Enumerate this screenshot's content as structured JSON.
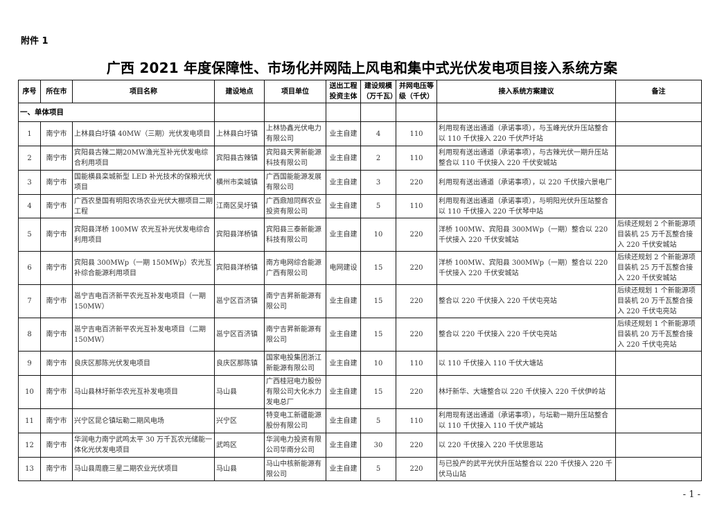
{
  "attachment_label": "附件 1",
  "title": "广西 2021 年度保障性、市场化并网陆上风电和集中式光伏发电项目接入系统方案",
  "table": {
    "headers": [
      "序号",
      "所在市",
      "项目名称",
      "建设地点",
      "项目单位",
      "送出工程投资主体",
      "建设规模（万千瓦）",
      "并网电压等级（千伏）",
      "接入系统方案建议",
      "备注"
    ],
    "section_label": "一、单体项目",
    "rows": [
      {
        "no": "1",
        "city": "南宁市",
        "name": "上林县白圩镇 40MW（三期）光伏发电项目",
        "site": "上林县白圩镇",
        "unit": "上林协鑫光伏电力有限公司",
        "investor": "业主自建",
        "scale": "4",
        "voltage": "110",
        "scheme": "利用现有送出通道（承诺事项），与玉峰光伏升压站整合以 110 千伏接入 220 千伏芦圩站",
        "note": ""
      },
      {
        "no": "2",
        "city": "南宁市",
        "name": "宾阳县古辣二期20MW渔光互补光伏发电综合利用项目",
        "site": "宾阳县古辣镇",
        "unit": "宾阳县天霁新能源科技有限公司",
        "investor": "业主自建",
        "scale": "2",
        "voltage": "110",
        "scheme": "利用现有送出通道（承诺事项），与古辣光伏一期升压站整合以 110 千伏接入 220 千伏安城站",
        "note": ""
      },
      {
        "no": "3",
        "city": "南宁市",
        "name": "国能横县栾城新型 LED 补光技术的保粮光伏项目",
        "site": "横州市栾城镇",
        "unit": "广西国能能源发展有限公司",
        "investor": "业主自建",
        "scale": "3",
        "voltage": "220",
        "scheme": "利用现有送出通道（承诺事项），以 220 千伏接六景电厂",
        "note": ""
      },
      {
        "no": "4",
        "city": "南宁市",
        "name": "广西农垦国有明阳农场农业光伏大棚项目二期工程",
        "site": "江南区吴圩镇",
        "unit": "广西鼎旭同辉农业投资有限公司",
        "investor": "业主自建",
        "scale": "5",
        "voltage": "110",
        "scheme": "利用现有送出通道（承诺事项），与明阳光伏升压站整合以 110 千伏接入 220 千伏琴中站",
        "note": ""
      },
      {
        "no": "5",
        "city": "南宁市",
        "name": "宾阳县洋桥 100MW 农光互补光伏发电综合利用项目",
        "site": "宾阳县洋桥镇",
        "unit": "宾阳县三泰新能源科技有限公司",
        "investor": "业主自建",
        "scale": "10",
        "voltage": "220",
        "scheme": "洋桥 100MW、宾阳县 300MWp（一期）整合以 220 千伏接入 220 千伏安城站",
        "note": "后续还规划 2 个新能源项目装机 25 万千瓦整合接入 220 千伏安城站"
      },
      {
        "no": "6",
        "city": "南宁市",
        "name": "宾阳县 300MWp（一期 150MWp）农光互补综合能源利用项目",
        "site": "宾阳县洋桥镇",
        "unit": "南方电网综合能源广西有限公司",
        "investor": "电网建设",
        "scale": "15",
        "voltage": "220",
        "scheme": "洋桥 100MW、宾阳县 300MWp（一期）整合以 220 千伏接入 220 千伏安城站",
        "note": "后续还规划 2 个新能源项目装机 25 万千瓦整合接入 220 千伏安城站"
      },
      {
        "no": "7",
        "city": "南宁市",
        "name": "邕宁吉电百济新平农光互补发电项目（一期 150MW）",
        "site": "邕宁区百济镇",
        "unit": "南宁吉昇新能源有限公司",
        "investor": "业主自建",
        "scale": "15",
        "voltage": "220",
        "scheme": "整合以 220 千伏接入 220 千伏屯亮站",
        "note": "后续还规划 1 个新能源项目装机 20 万千瓦整合接入 220 千伏屯亮站"
      },
      {
        "no": "8",
        "city": "南宁市",
        "name": "邕宁吉电百济新平农光互补发电项目（二期 150MW）",
        "site": "邕宁区百济镇",
        "unit": "南宁吉昇新能源有限公司",
        "investor": "业主自建",
        "scale": "15",
        "voltage": "220",
        "scheme": "整合以 220 千伏接入 220 千伏屯亮站",
        "note": "后续还规划 1 个新能源项目装机 20 万千瓦整合接入 220 千伏屯亮站"
      },
      {
        "no": "9",
        "city": "南宁市",
        "name": "良庆区那陈光伏发电项目",
        "site": "良庆区那陈镇",
        "unit": "国家电投集团浙江新能源有限公司",
        "investor": "业主自建",
        "scale": "10",
        "voltage": "110",
        "scheme": "以 110 千伏接入 110 千伏大塘站",
        "note": ""
      },
      {
        "no": "10",
        "city": "南宁市",
        "name": "马山县林圩新华农光互补发电项目",
        "site": "马山县",
        "unit": "广西桂冠电力股份有限公司大化水力发电总厂",
        "investor": "业主自建",
        "scale": "15",
        "voltage": "220",
        "scheme": "林圩新华、大塘整合以 220 千伏接入 220 千伏伊岭站",
        "note": ""
      },
      {
        "no": "11",
        "city": "南宁市",
        "name": "兴宁区昆仑镇坛勒二期风电场",
        "site": "兴宁区",
        "unit": "特变电工新疆能源股份有限公司",
        "investor": "业主自建",
        "scale": "5",
        "voltage": "110",
        "scheme": "利用现有送出通道（承诺事项），与坛勒一期升压站整合以 110 千伏接入 110 千伏产城站",
        "note": ""
      },
      {
        "no": "12",
        "city": "南宁市",
        "name": "华润电力南宁武鸣太平 30 万千瓦农光储能一体化光伏发电项目",
        "site": "武鸣区",
        "unit": "华润电力投资有限公司华南分公司",
        "investor": "业主自建",
        "scale": "30",
        "voltage": "220",
        "scheme": "以 220 千伏接入 220 千伏思恩站",
        "note": ""
      },
      {
        "no": "13",
        "city": "南宁市",
        "name": "马山县周鹿三星二期农业光伏项目",
        "site": "马山县",
        "unit": "马山中核新能源有限公司",
        "investor": "业主自建",
        "scale": "5",
        "voltage": "220",
        "scheme": "与已投产的武平光伏升压站整合以 220 千伏接入 220 千伏马山站",
        "note": ""
      }
    ]
  },
  "page_number": "- 1 -"
}
